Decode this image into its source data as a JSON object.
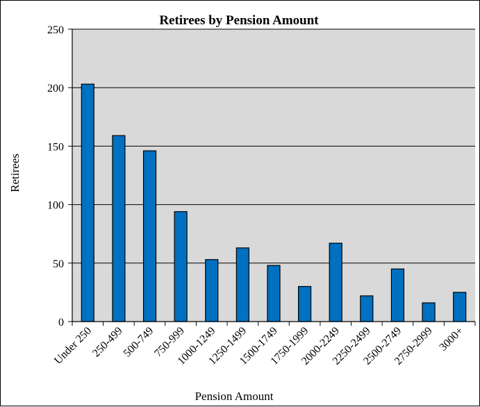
{
  "chart_data": {
    "type": "bar",
    "title": "Retirees by Pension Amount",
    "xlabel": "Pension Amount",
    "ylabel": "Retirees",
    "ylim": [
      0,
      250
    ],
    "yticks": [
      0,
      50,
      100,
      150,
      200,
      250
    ],
    "grid": true,
    "legend": "none",
    "categories": [
      "Under 250",
      "250-499",
      "500-749",
      "750-999",
      "1000-1249",
      "1250-1499",
      "1500-1749",
      "1750-1999",
      "2000-2249",
      "2250-2499",
      "2500-2749",
      "2750-2999",
      "3000+"
    ],
    "series": [
      {
        "values": [
          203,
          159,
          146,
          94,
          53,
          63,
          48,
          30,
          67,
          22,
          45,
          16,
          25
        ]
      }
    ],
    "colors": {
      "bar_fill": "#0070C0",
      "bar_stroke": "#000000",
      "plot_background": "#D9D9D9",
      "gridline": "#000000"
    }
  }
}
